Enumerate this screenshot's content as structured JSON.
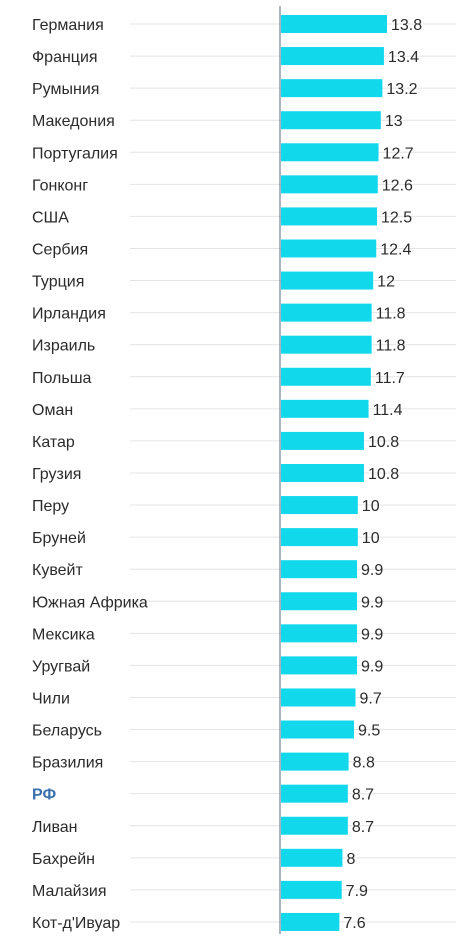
{
  "chart_data": {
    "type": "bar",
    "orientation": "horizontal",
    "categories": [
      "Германия",
      "Франция",
      "Румыния",
      "Македония",
      "Португалия",
      "Гонконг",
      "США",
      "Сербия",
      "Турция",
      "Ирландия",
      "Израиль",
      "Польша",
      "Оман",
      "Катар",
      "Грузия",
      "Перу",
      "Бруней",
      "Кувейт",
      "Южная Африка",
      "Мексика",
      "Уругвай",
      "Чили",
      "Беларусь",
      "Бразилия",
      "РФ",
      "Ливан",
      "Бахрейн",
      "Малайзия",
      "Кот-д'Ивуар"
    ],
    "values": [
      13.8,
      13.4,
      13.2,
      13,
      12.7,
      12.6,
      12.5,
      12.4,
      12,
      11.8,
      11.8,
      11.7,
      11.4,
      10.8,
      10.8,
      10,
      10,
      9.9,
      9.9,
      9.9,
      9.9,
      9.7,
      9.5,
      8.8,
      8.7,
      8.7,
      8,
      7.9,
      7.6
    ],
    "value_labels": [
      "13.8",
      "13.4",
      "13.2",
      "13",
      "12.7",
      "12.6",
      "12.5",
      "12.4",
      "12",
      "11.8",
      "11.8",
      "11.7",
      "11.4",
      "10.8",
      "10.8",
      "10",
      "10",
      "9.9",
      "9.9",
      "9.9",
      "9.9",
      "9.7",
      "9.5",
      "8.8",
      "8.7",
      "8.7",
      "8",
      "7.9",
      "7.6"
    ],
    "highlight": "РФ",
    "title": "",
    "xlabel": "",
    "ylabel": "",
    "bar_color": "#12d8ec",
    "highlight_label_color": "#3a6fb0",
    "grid_color": "#e4e4e4",
    "axis_color": "#5a6a80",
    "grid": true,
    "legend": false
  }
}
